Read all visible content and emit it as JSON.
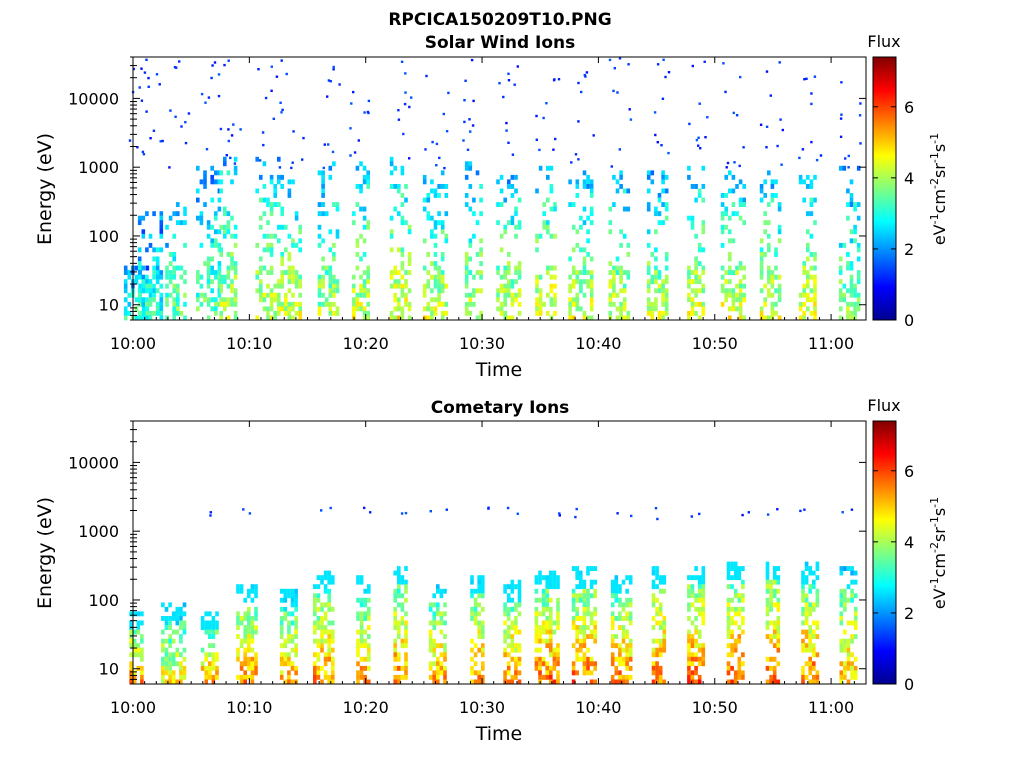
{
  "figure": {
    "title": "RPCICA150209T10.PNG"
  },
  "chart_data": [
    {
      "type": "heatmap",
      "title": "Solar Wind Ions",
      "xlabel": "Time",
      "ylabel": "Energy (eV)",
      "x_range": [
        "10:00",
        "11:03"
      ],
      "x_ticks": [
        "10:00",
        "10:10",
        "10:20",
        "10:30",
        "10:40",
        "10:50",
        "11:00"
      ],
      "y_scale": "log",
      "y_range": [
        6,
        40000
      ],
      "y_ticks": [
        "10",
        "100",
        "1000",
        "10000"
      ],
      "colorbar": {
        "label": "Flux",
        "unit_base": "eV",
        "unit_exp1": "-1",
        "unit_cm": "cm",
        "unit_exp2": "-2",
        "unit_sr": "sr",
        "unit_exp3": "-1",
        "unit_s": "s",
        "unit_exp4": "-1",
        "range": [
          0,
          7.4
        ],
        "ticks": [
          "0",
          "2",
          "4",
          "6"
        ]
      },
      "bursts": [
        {
          "t": 0.3,
          "peak": 3.5,
          "top": 30,
          "hi": 0
        },
        {
          "t": 1.5,
          "peak": 3.3,
          "top": 200,
          "hi": 1
        },
        {
          "t": 3.7,
          "peak": 3.8,
          "top": 250,
          "hi": 1
        },
        {
          "t": 6.5,
          "peak": 3.6,
          "top": 900,
          "hi": 1
        },
        {
          "t": 8.2,
          "peak": 4.2,
          "top": 1500,
          "hi": 1
        },
        {
          "t": 11.6,
          "peak": 4.3,
          "top": 1200,
          "hi": 1
        },
        {
          "t": 13.6,
          "peak": 4.4,
          "top": 800,
          "hi": 1
        },
        {
          "t": 16.8,
          "peak": 4.1,
          "top": 1000,
          "hi": 1
        },
        {
          "t": 19.6,
          "peak": 4.4,
          "top": 1100,
          "hi": 1
        },
        {
          "t": 23.0,
          "peak": 4.6,
          "top": 1200,
          "hi": 1
        },
        {
          "t": 26.0,
          "peak": 4.4,
          "top": 700,
          "hi": 1
        },
        {
          "t": 29.3,
          "peak": 4.3,
          "top": 1000,
          "hi": 1
        },
        {
          "t": 32.3,
          "peak": 4.4,
          "top": 600,
          "hi": 1
        },
        {
          "t": 35.5,
          "peak": 4.6,
          "top": 900,
          "hi": 1
        },
        {
          "t": 38.5,
          "peak": 4.4,
          "top": 700,
          "hi": 1
        },
        {
          "t": 41.8,
          "peak": 4.3,
          "top": 800,
          "hi": 1
        },
        {
          "t": 45.1,
          "peak": 4.3,
          "top": 700,
          "hi": 1
        },
        {
          "t": 48.4,
          "peak": 4.5,
          "top": 900,
          "hi": 1
        },
        {
          "t": 51.6,
          "peak": 4.5,
          "top": 700,
          "hi": 1
        },
        {
          "t": 54.8,
          "peak": 4.4,
          "top": 800,
          "hi": 1
        },
        {
          "t": 58.0,
          "peak": 4.6,
          "top": 700,
          "hi": 1
        },
        {
          "t": 61.6,
          "peak": 3.9,
          "top": 900,
          "hi": 1
        }
      ]
    },
    {
      "type": "heatmap",
      "title": "Cometary Ions",
      "xlabel": "Time",
      "ylabel": "Energy (eV)",
      "x_range": [
        "10:00",
        "11:03"
      ],
      "x_ticks": [
        "10:00",
        "10:10",
        "10:20",
        "10:30",
        "10:40",
        "10:50",
        "11:00"
      ],
      "y_scale": "log",
      "y_range": [
        6,
        40000
      ],
      "y_ticks": [
        "10",
        "100",
        "1000",
        "10000"
      ],
      "colorbar": {
        "label": "Flux",
        "unit_base": "eV",
        "unit_exp1": "-1",
        "unit_cm": "cm",
        "unit_exp2": "-2",
        "unit_sr": "sr",
        "unit_exp3": "-1",
        "unit_s": "s",
        "unit_exp4": "-1",
        "range": [
          0,
          7.4
        ],
        "ticks": [
          "0",
          "2",
          "4",
          "6"
        ]
      },
      "bursts": [
        {
          "t": 0.3,
          "peak": 5.6,
          "top": 60,
          "hi": 0
        },
        {
          "t": 3.5,
          "peak": 4.8,
          "top": 80,
          "hi": 0
        },
        {
          "t": 6.6,
          "peak": 5.4,
          "top": 60,
          "hi": 1
        },
        {
          "t": 9.8,
          "peak": 5.6,
          "top": 150,
          "hi": 1
        },
        {
          "t": 13.4,
          "peak": 5.3,
          "top": 120,
          "hi": 0
        },
        {
          "t": 16.4,
          "peak": 5.6,
          "top": 220,
          "hi": 1
        },
        {
          "t": 19.8,
          "peak": 5.5,
          "top": 180,
          "hi": 1
        },
        {
          "t": 23.0,
          "peak": 5.7,
          "top": 280,
          "hi": 1
        },
        {
          "t": 26.2,
          "peak": 5.4,
          "top": 150,
          "hi": 1
        },
        {
          "t": 29.6,
          "peak": 5.6,
          "top": 200,
          "hi": 1
        },
        {
          "t": 32.6,
          "peak": 5.7,
          "top": 160,
          "hi": 1
        },
        {
          "t": 35.6,
          "peak": 5.8,
          "top": 220,
          "hi": 1
        },
        {
          "t": 38.8,
          "peak": 5.8,
          "top": 240,
          "hi": 1
        },
        {
          "t": 42.0,
          "peak": 5.7,
          "top": 200,
          "hi": 1
        },
        {
          "t": 45.2,
          "peak": 5.8,
          "top": 240,
          "hi": 1
        },
        {
          "t": 48.4,
          "peak": 5.9,
          "top": 260,
          "hi": 1
        },
        {
          "t": 51.8,
          "peak": 5.9,
          "top": 320,
          "hi": 1
        },
        {
          "t": 55.0,
          "peak": 5.9,
          "top": 300,
          "hi": 1
        },
        {
          "t": 58.2,
          "peak": 5.8,
          "top": 280,
          "hi": 1
        },
        {
          "t": 61.5,
          "peak": 5.3,
          "top": 240,
          "hi": 1
        }
      ]
    }
  ]
}
